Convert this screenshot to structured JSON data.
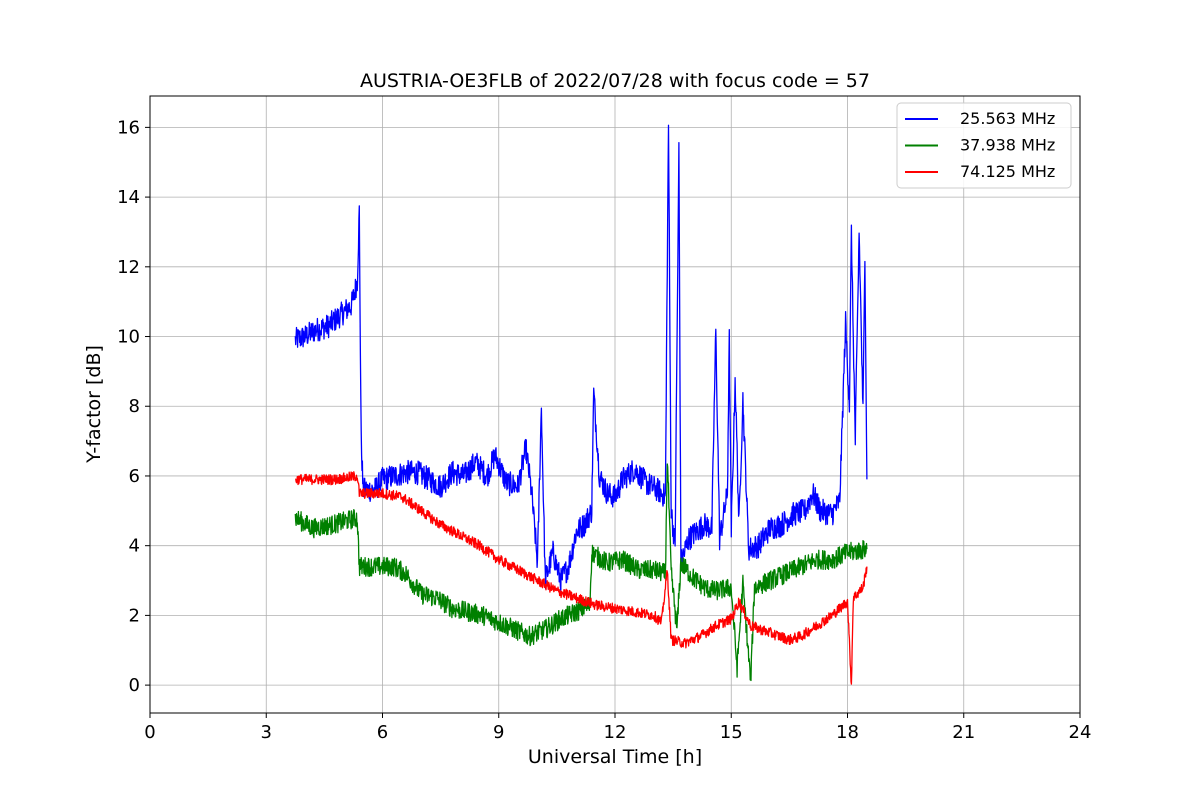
{
  "chart_data": {
    "type": "line",
    "title": "AUSTRIA-OE3FLB of 2022/07/28 with focus code = 57",
    "xlabel": "Universal Time [h]",
    "ylabel": "Y-factor [dB]",
    "xlim": [
      0,
      24
    ],
    "ylim": [
      -0.8,
      16.9
    ],
    "xticks": [
      0,
      3,
      6,
      9,
      12,
      15,
      18,
      21,
      24
    ],
    "yticks": [
      0,
      2,
      4,
      6,
      8,
      10,
      12,
      14,
      16
    ],
    "grid": true,
    "legend_position": "top-right",
    "series": [
      {
        "name": "25.563 MHz",
        "color": "#0000ff",
        "noise": 0.35,
        "points": [
          [
            3.75,
            9.9
          ],
          [
            4.0,
            10.0
          ],
          [
            4.3,
            10.2
          ],
          [
            4.6,
            10.3
          ],
          [
            4.9,
            10.6
          ],
          [
            5.2,
            10.9
          ],
          [
            5.35,
            11.6
          ],
          [
            5.4,
            13.6
          ],
          [
            5.45,
            7.0
          ],
          [
            5.5,
            5.6
          ],
          [
            5.8,
            5.6
          ],
          [
            6.0,
            5.9
          ],
          [
            6.3,
            6.0
          ],
          [
            6.6,
            6.1
          ],
          [
            6.9,
            6.1
          ],
          [
            7.2,
            5.9
          ],
          [
            7.5,
            5.7
          ],
          [
            7.8,
            6.1
          ],
          [
            8.1,
            6.0
          ],
          [
            8.4,
            6.4
          ],
          [
            8.7,
            6.0
          ],
          [
            8.9,
            6.6
          ],
          [
            9.2,
            5.8
          ],
          [
            9.5,
            5.7
          ],
          [
            9.7,
            6.8
          ],
          [
            9.85,
            5.5
          ],
          [
            10.0,
            3.5
          ],
          [
            10.1,
            8.0
          ],
          [
            10.2,
            3.0
          ],
          [
            10.4,
            3.8
          ],
          [
            10.6,
            3.0
          ],
          [
            10.8,
            3.4
          ],
          [
            11.0,
            4.4
          ],
          [
            11.2,
            4.6
          ],
          [
            11.4,
            5.0
          ],
          [
            11.45,
            8.4
          ],
          [
            11.6,
            6.0
          ],
          [
            11.8,
            5.5
          ],
          [
            12.0,
            5.4
          ],
          [
            12.2,
            5.9
          ],
          [
            12.5,
            6.2
          ],
          [
            12.8,
            5.8
          ],
          [
            13.1,
            5.6
          ],
          [
            13.3,
            5.4
          ],
          [
            13.38,
            16.1
          ],
          [
            13.45,
            5.0
          ],
          [
            13.55,
            4.0
          ],
          [
            13.65,
            15.5
          ],
          [
            13.7,
            3.5
          ],
          [
            13.9,
            4.2
          ],
          [
            14.1,
            4.4
          ],
          [
            14.3,
            4.6
          ],
          [
            14.5,
            4.5
          ],
          [
            14.6,
            10.2
          ],
          [
            14.7,
            4.2
          ],
          [
            14.9,
            5.5
          ],
          [
            14.95,
            9.9
          ],
          [
            15.0,
            4.4
          ],
          [
            15.1,
            8.8
          ],
          [
            15.2,
            4.6
          ],
          [
            15.3,
            8.2
          ],
          [
            15.45,
            3.9
          ],
          [
            15.7,
            4.0
          ],
          [
            16.0,
            4.5
          ],
          [
            16.3,
            4.6
          ],
          [
            16.6,
            4.9
          ],
          [
            16.9,
            5.0
          ],
          [
            17.1,
            5.5
          ],
          [
            17.3,
            5.0
          ],
          [
            17.6,
            4.9
          ],
          [
            17.8,
            5.3
          ],
          [
            17.95,
            10.4
          ],
          [
            18.05,
            8.0
          ],
          [
            18.1,
            13.0
          ],
          [
            18.2,
            7.0
          ],
          [
            18.3,
            13.0
          ],
          [
            18.4,
            7.8
          ],
          [
            18.45,
            12.5
          ],
          [
            18.5,
            5.9
          ]
        ]
      },
      {
        "name": "37.938 MHz",
        "color": "#008000",
        "noise": 0.28,
        "points": [
          [
            3.75,
            4.8
          ],
          [
            4.2,
            4.5
          ],
          [
            4.7,
            4.6
          ],
          [
            5.35,
            4.8
          ],
          [
            5.4,
            3.4
          ],
          [
            5.8,
            3.4
          ],
          [
            6.3,
            3.4
          ],
          [
            6.6,
            3.2
          ],
          [
            7.0,
            2.6
          ],
          [
            7.4,
            2.5
          ],
          [
            7.8,
            2.2
          ],
          [
            8.2,
            2.1
          ],
          [
            8.6,
            2.0
          ],
          [
            9.0,
            1.8
          ],
          [
            9.4,
            1.6
          ],
          [
            9.8,
            1.4
          ],
          [
            10.2,
            1.6
          ],
          [
            10.6,
            1.9
          ],
          [
            11.0,
            2.1
          ],
          [
            11.35,
            2.3
          ],
          [
            11.4,
            3.8
          ],
          [
            11.8,
            3.5
          ],
          [
            12.2,
            3.6
          ],
          [
            12.6,
            3.3
          ],
          [
            13.0,
            3.3
          ],
          [
            13.3,
            3.2
          ],
          [
            13.35,
            6.5
          ],
          [
            13.45,
            3.2
          ],
          [
            13.6,
            1.6
          ],
          [
            13.7,
            3.5
          ],
          [
            14.0,
            3.1
          ],
          [
            14.3,
            2.8
          ],
          [
            14.6,
            2.7
          ],
          [
            15.0,
            2.8
          ],
          [
            15.15,
            0.5
          ],
          [
            15.3,
            2.9
          ],
          [
            15.5,
            0.1
          ],
          [
            15.6,
            2.8
          ],
          [
            16.0,
            3.0
          ],
          [
            16.4,
            3.2
          ],
          [
            16.8,
            3.4
          ],
          [
            17.2,
            3.6
          ],
          [
            17.6,
            3.6
          ],
          [
            18.0,
            3.8
          ],
          [
            18.5,
            3.9
          ]
        ]
      },
      {
        "name": "74.125 MHz",
        "color": "#ff0000",
        "noise": 0.15,
        "points": [
          [
            3.75,
            5.9
          ],
          [
            4.3,
            5.9
          ],
          [
            4.8,
            5.9
          ],
          [
            5.35,
            6.0
          ],
          [
            5.4,
            5.5
          ],
          [
            6.0,
            5.5
          ],
          [
            6.5,
            5.4
          ],
          [
            7.0,
            5.0
          ],
          [
            7.5,
            4.6
          ],
          [
            8.0,
            4.3
          ],
          [
            8.5,
            4.0
          ],
          [
            9.0,
            3.6
          ],
          [
            9.5,
            3.3
          ],
          [
            10.0,
            3.0
          ],
          [
            10.5,
            2.7
          ],
          [
            11.0,
            2.5
          ],
          [
            11.5,
            2.3
          ],
          [
            12.0,
            2.2
          ],
          [
            12.5,
            2.1
          ],
          [
            13.0,
            2.0
          ],
          [
            13.2,
            1.8
          ],
          [
            13.35,
            3.3
          ],
          [
            13.45,
            1.3
          ],
          [
            13.8,
            1.2
          ],
          [
            14.2,
            1.4
          ],
          [
            14.6,
            1.7
          ],
          [
            15.0,
            1.9
          ],
          [
            15.2,
            2.4
          ],
          [
            15.5,
            1.7
          ],
          [
            16.0,
            1.5
          ],
          [
            16.5,
            1.3
          ],
          [
            16.8,
            1.4
          ],
          [
            17.2,
            1.7
          ],
          [
            17.6,
            2.0
          ],
          [
            18.0,
            2.4
          ],
          [
            18.1,
            0.0
          ],
          [
            18.15,
            2.5
          ],
          [
            18.4,
            2.8
          ],
          [
            18.5,
            3.4
          ]
        ]
      }
    ]
  }
}
